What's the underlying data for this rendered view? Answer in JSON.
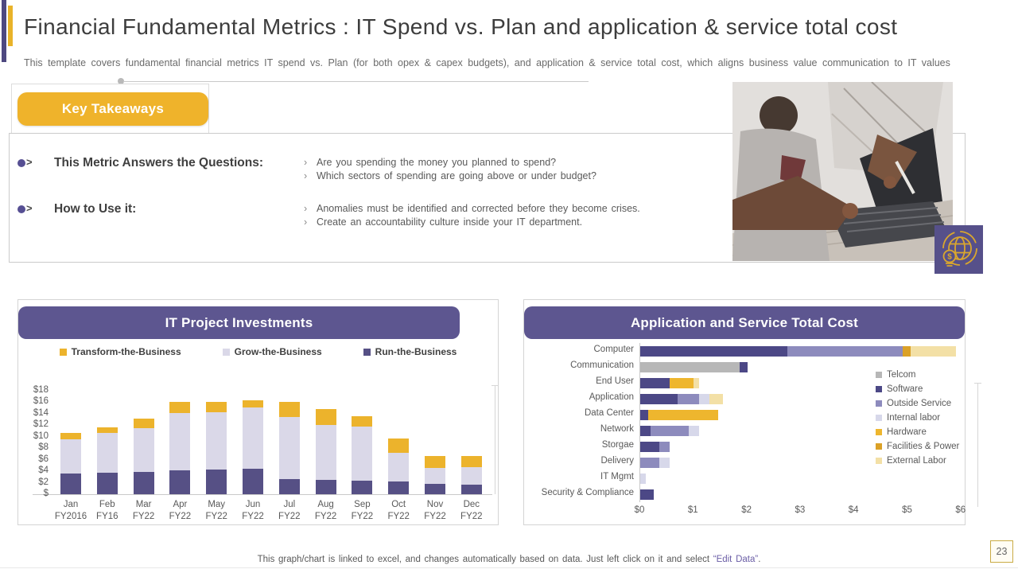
{
  "slide": {
    "title": "Financial Fundamental Metrics : IT Spend vs. Plan and application & service total cost",
    "subtitle": "This template covers fundamental financial metrics IT spend vs. Plan (for both opex & capex budgets), and application & service total cost, which aligns business value communication to IT values",
    "page_number": "23",
    "footer_prefix": "This graph/chart is linked to excel, and changes automatically based on data. Just left click on it and select ",
    "footer_link": "“Edit Data”",
    "footer_suffix": "."
  },
  "icons": {
    "bullet_chevron": ">",
    "sub_bullet": "›",
    "globe_dollar": "globe-with-dollar-coin"
  },
  "key_takeaways": {
    "button_label": "Key Takeaways",
    "rows": [
      {
        "label": "This Metric Answers the Questions:",
        "points": [
          "Are you spending the money you planned to spend?",
          "Which sectors of spending are going above or under budget?"
        ]
      },
      {
        "label": "How to Use it:",
        "points": [
          "Anomalies must be identified and corrected before they become crises.",
          "Create an accountability culture inside your IT department."
        ]
      }
    ]
  },
  "colors": {
    "accent_purple": "#4e4880",
    "accent_yellow": "#e9b32a",
    "header_purple": "#5d5690",
    "button_yellow": "#efb32b",
    "badge_purple": "#56508a",
    "badge_gold": "#d9a62e"
  },
  "chart_data": [
    {
      "type": "bar",
      "stacked": true,
      "title": "IT Project Investments",
      "categories": [
        {
          "m": "Jan",
          "fy": "FY2016"
        },
        {
          "m": "Feb",
          "fy": "FY16"
        },
        {
          "m": "Mar",
          "fy": "FY22"
        },
        {
          "m": "Apr",
          "fy": "FY22"
        },
        {
          "m": "May",
          "fy": "FY22"
        },
        {
          "m": "Jun",
          "fy": "FY22"
        },
        {
          "m": "Jul",
          "fy": "FY22"
        },
        {
          "m": "Aug",
          "fy": "FY22"
        },
        {
          "m": "Sep",
          "fy": "FY22"
        },
        {
          "m": "Oct",
          "fy": "FY22"
        },
        {
          "m": "Nov",
          "fy": "FY22"
        },
        {
          "m": "Dec",
          "fy": "FY22"
        }
      ],
      "series": [
        {
          "name": "Transform-the-Business",
          "color": "#ecb32c",
          "values": [
            1.1,
            1.0,
            1.6,
            1.9,
            1.7,
            1.3,
            2.7,
            2.8,
            1.8,
            2.5,
            2.0,
            2.0
          ]
        },
        {
          "name": "Grow-the-Business",
          "color": "#dad8e8",
          "values": [
            6.0,
            6.9,
            7.6,
            9.9,
            10.0,
            10.6,
            10.8,
            9.5,
            9.4,
            5.0,
            2.8,
            3.0
          ]
        },
        {
          "name": "Run-the-Business",
          "color": "#565085",
          "values": [
            3.6,
            3.8,
            3.9,
            4.2,
            4.3,
            4.5,
            2.6,
            2.5,
            2.4,
            2.2,
            1.8,
            1.7
          ]
        }
      ],
      "ylim": [
        0,
        18
      ],
      "y_ticks": [
        {
          "label": "$18",
          "v": 18
        },
        {
          "label": "$16",
          "v": 16
        },
        {
          "label": "$14",
          "v": 14
        },
        {
          "label": "$12",
          "v": 12
        },
        {
          "label": "$10",
          "v": 10
        },
        {
          "label": "$8",
          "v": 8
        },
        {
          "label": "$6",
          "v": 6
        },
        {
          "label": "$4",
          "v": 4
        },
        {
          "label": "$2",
          "v": 2
        },
        {
          "label": "$",
          "v": 0
        }
      ],
      "grid": false,
      "legend_position": "top"
    },
    {
      "type": "bar",
      "orientation": "horizontal",
      "stacked": true,
      "title": "Application and Service Total Cost",
      "categories": [
        "Computer",
        "Communication",
        "End User",
        "Application",
        "Data Center",
        "Network",
        "Storgae",
        "Delivery",
        "IT Mgmt",
        "Security & Compliance"
      ],
      "legend": [
        {
          "name": "Telcom",
          "color": "#b7b7b7"
        },
        {
          "name": "Software",
          "color": "#4c4886"
        },
        {
          "name": "Outside Service",
          "color": "#8d8bbd"
        },
        {
          "name": "Internal labor",
          "color": "#d7d8ea"
        },
        {
          "name": "Hardware",
          "color": "#eeb62e"
        },
        {
          "name": "Facilities & Power",
          "color": "#dba127"
        },
        {
          "name": "External Labor",
          "color": "#f3e0a6"
        }
      ],
      "bars": [
        [
          {
            "series": "Software",
            "value": 2.75
          },
          {
            "series": "Outside Service",
            "value": 2.15
          },
          {
            "series": "Facilities & Power",
            "value": 0.15
          },
          {
            "series": "External Labor",
            "value": 0.85
          }
        ],
        [
          {
            "series": "Telcom",
            "value": 1.85
          },
          {
            "series": "Software",
            "value": 0.15
          }
        ],
        [
          {
            "series": "Software",
            "value": 0.55
          },
          {
            "series": "Hardware",
            "value": 0.45
          },
          {
            "series": "External Labor",
            "value": 0.1
          }
        ],
        [
          {
            "series": "Software",
            "value": 0.7
          },
          {
            "series": "Outside Service",
            "value": 0.4
          },
          {
            "series": "Internal labor",
            "value": 0.2
          },
          {
            "series": "External Labor",
            "value": 0.25
          }
        ],
        [
          {
            "series": "Software",
            "value": 0.15
          },
          {
            "series": "Hardware",
            "value": 1.3
          }
        ],
        [
          {
            "series": "Software",
            "value": 0.2
          },
          {
            "series": "Outside Service",
            "value": 0.7
          },
          {
            "series": "Internal labor",
            "value": 0.2
          }
        ],
        [
          {
            "series": "Software",
            "value": 0.35
          },
          {
            "series": "Outside Service",
            "value": 0.2
          }
        ],
        [
          {
            "series": "Outside Service",
            "value": 0.35
          },
          {
            "series": "Internal labor",
            "value": 0.2
          }
        ],
        [
          {
            "series": "Internal labor",
            "value": 0.1
          }
        ],
        [
          {
            "series": "Software",
            "value": 0.25
          }
        ]
      ],
      "xlim": [
        0,
        6
      ],
      "x_ticks": [
        "$0",
        "$1",
        "$2",
        "$3",
        "$4",
        "$5",
        "$6"
      ],
      "grid": false,
      "legend_position": "right"
    }
  ]
}
